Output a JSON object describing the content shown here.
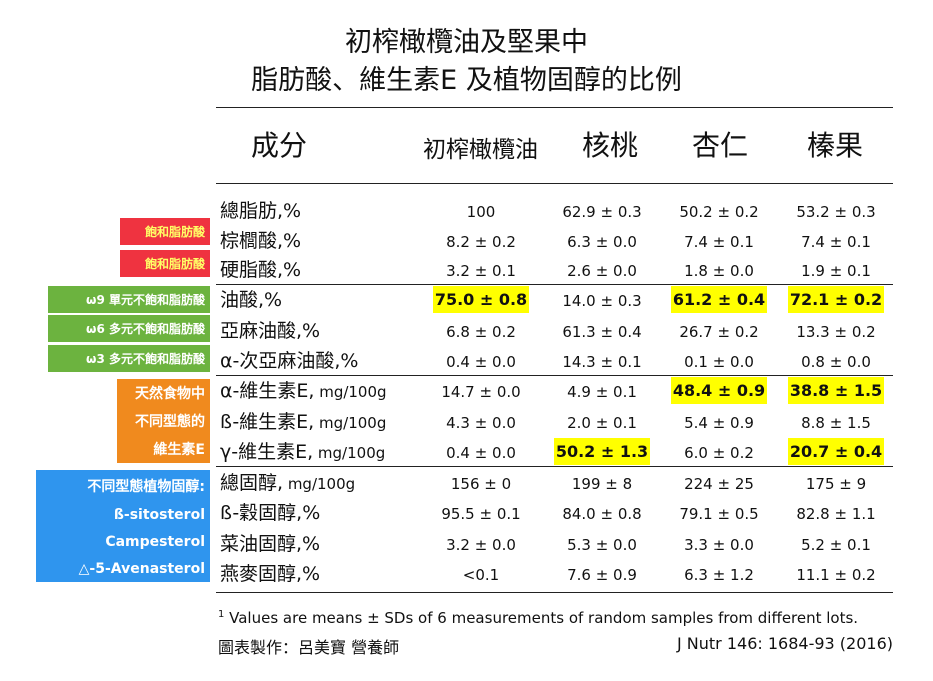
{
  "title": {
    "line1": "初榨橄欖油及堅果中",
    "line2": "脂肪酸、維生素E 及植物固醇的比例"
  },
  "columns": {
    "component": "成分",
    "olive_oil": "初榨橄欖油",
    "walnut": "核桃",
    "almond": "杏仁",
    "hazelnut": "榛果"
  },
  "tags": {
    "saturated": "飽和脂肪酸",
    "omega9": "ω9 單元不飽和脂肪酸",
    "omega6": "ω6 多元不飽和脂肪酸",
    "omega3": "ω3 多元不飽和脂肪酸",
    "vitamin_e": [
      "天然食物中",
      "不同型態的",
      "維生素E"
    ],
    "sterols": [
      "不同型態植物固醇:",
      "ß-sitosterol",
      "Campesterol",
      "△-5-Avenasterol"
    ]
  },
  "rows": [
    {
      "label": "總脂肪,%",
      "unit": "",
      "v": [
        "100",
        "62.9 ± 0.3",
        "50.2 ± 0.2",
        "53.2 ± 0.3"
      ],
      "hl": [
        false,
        false,
        false,
        false
      ]
    },
    {
      "label": "棕櫚酸,%",
      "unit": "",
      "v": [
        "8.2 ± 0.2",
        "6.3 ± 0.0",
        "7.4 ± 0.1",
        "7.4 ± 0.1"
      ],
      "hl": [
        false,
        false,
        false,
        false
      ]
    },
    {
      "label": "硬脂酸,%",
      "unit": "",
      "v": [
        "3.2 ± 0.1",
        "2.6 ± 0.0",
        "1.8 ± 0.0",
        "1.9 ± 0.1"
      ],
      "hl": [
        false,
        false,
        false,
        false
      ]
    },
    {
      "label": "油酸,%",
      "unit": "",
      "v": [
        "75.0 ± 0.8",
        "14.0 ± 0.3",
        "61.2 ± 0.4",
        "72.1 ± 0.2"
      ],
      "hl": [
        true,
        false,
        true,
        true
      ]
    },
    {
      "label": "亞麻油酸,%",
      "unit": "",
      "v": [
        "6.8 ± 0.2",
        "61.3 ± 0.4",
        "26.7 ± 0.2",
        "13.3 ± 0.2"
      ],
      "hl": [
        false,
        false,
        false,
        false
      ]
    },
    {
      "label": "α-次亞麻油酸,%",
      "unit": "",
      "v": [
        "0.4 ± 0.0",
        "14.3 ± 0.1",
        "0.1 ± 0.0",
        "0.8 ± 0.0"
      ],
      "hl": [
        false,
        false,
        false,
        false
      ]
    },
    {
      "label": "α-維生素E,",
      "unit": " mg/100g",
      "v": [
        "14.7 ± 0.0",
        "4.9 ± 0.1",
        "48.4 ± 0.9",
        "38.8 ± 1.5"
      ],
      "hl": [
        false,
        false,
        true,
        true
      ]
    },
    {
      "label": "ß-維生素E,",
      "unit": " mg/100g",
      "v": [
        "4.3 ± 0.0",
        "2.0 ± 0.1",
        "5.4 ± 0.9",
        "8.8 ± 1.5"
      ],
      "hl": [
        false,
        false,
        false,
        false
      ]
    },
    {
      "label": "γ-維生素E,",
      "unit": " mg/100g",
      "v": [
        "0.4 ± 0.0",
        "50.2 ± 1.3",
        "6.0 ± 0.2",
        "20.7 ± 0.4"
      ],
      "hl": [
        false,
        true,
        false,
        true
      ]
    },
    {
      "label": "總固醇,",
      "unit": " mg/100g",
      "v": [
        "156 ± 0",
        "199 ± 8",
        "224 ± 25",
        "175 ± 9"
      ],
      "hl": [
        false,
        false,
        false,
        false
      ]
    },
    {
      "label": "ß-穀固醇,%",
      "unit": "",
      "v": [
        "95.5 ± 0.1",
        "84.0 ± 0.8",
        "79.1 ± 0.5",
        "82.8 ± 1.1"
      ],
      "hl": [
        false,
        false,
        false,
        false
      ]
    },
    {
      "label": "菜油固醇,%",
      "unit": "",
      "v": [
        "3.2 ± 0.0",
        "5.3 ± 0.0",
        "3.3 ± 0.0",
        "5.2 ± 0.1"
      ],
      "hl": [
        false,
        false,
        false,
        false
      ]
    },
    {
      "label": "燕麥固醇,%",
      "unit": "",
      "v": [
        "<0.1",
        "7.6 ± 0.9",
        "6.3 ± 1.2",
        "11.1 ± 0.2"
      ],
      "hl": [
        false,
        false,
        false,
        false
      ]
    }
  ],
  "footnote": {
    "sup": "1",
    "text": " Values are means ± SDs of 6 measurements of random samples from different lots.",
    "author": "圖表製作：呂美寶 營養師",
    "citation": "J Nutr 146: 1684-93 (2016)"
  }
}
